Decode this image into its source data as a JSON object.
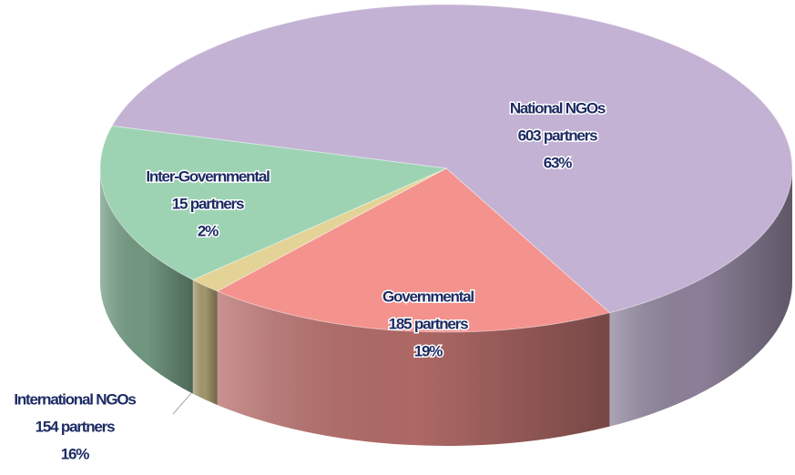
{
  "chart_data": {
    "type": "pie",
    "categories": [
      "National NGOs",
      "Governmental",
      "Inter-Governmental",
      "International NGOs"
    ],
    "values": [
      603,
      185,
      15,
      154
    ],
    "value_labels": [
      "603 partners",
      "185 partners",
      "15 partners",
      "154 partners"
    ],
    "percents": [
      63,
      19,
      2,
      16
    ],
    "percent_labels": [
      "63%",
      "19%",
      "2%",
      "16%"
    ],
    "colors": [
      "#c3b2d4",
      "#f4928e",
      "#e3d396",
      "#9dd3b3"
    ]
  }
}
